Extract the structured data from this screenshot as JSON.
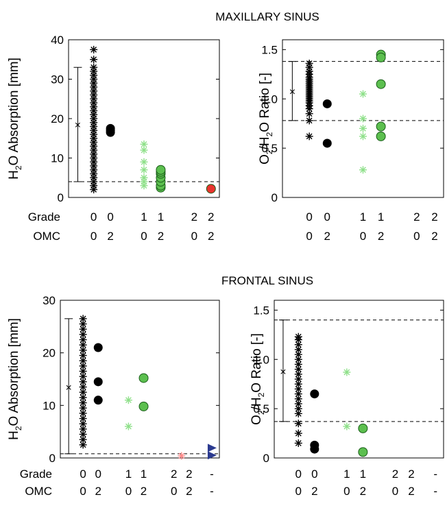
{
  "figure": {
    "top_title": "MAXILLARY SINUS",
    "bottom_title": "FRONTAL SINUS"
  },
  "row_labels": {
    "grade": "Grade",
    "omc": "OMC"
  },
  "colors": {
    "black": "#000000",
    "light_green": "#8fe08a",
    "green": "#5cbf4f",
    "red": "#e8352f",
    "pink": "#ff8a8a",
    "blue": "#2b3a8f"
  },
  "chart_data": [
    {
      "id": "max_h2o",
      "type": "scatter",
      "ylabel_main": "H",
      "ylabel_sub": "2",
      "ylabel_rest": "O Absorption [mm]",
      "ylim": [
        0,
        40
      ],
      "yticks": [
        0,
        10,
        20,
        30,
        40
      ],
      "ytick_labels": [
        "0",
        "10",
        "20",
        "30",
        "40"
      ],
      "xlim": [
        0,
        9
      ],
      "groups": [
        {
          "grade": "0",
          "omc": "0",
          "x": 1.5
        },
        {
          "grade": "0",
          "omc": "2",
          "x": 2.5
        },
        {
          "grade": "1",
          "omc": "0",
          "x": 4.5
        },
        {
          "grade": "1",
          "omc": "2",
          "x": 5.5
        },
        {
          "grade": "2",
          "omc": "0",
          "x": 7.5
        },
        {
          "grade": "2",
          "omc": "2",
          "x": 8.5
        }
      ],
      "dashed_lines": [
        4
      ],
      "errorbar": {
        "x": 0.55,
        "mean": 18.5,
        "low": 4,
        "high": 33
      },
      "series": [
        {
          "marker": "star",
          "color": "#000000",
          "x": 1.5,
          "y": [
            2,
            3,
            4,
            5,
            6,
            7,
            8,
            9,
            10,
            11,
            12,
            13,
            14,
            15,
            16,
            17,
            18,
            19,
            20,
            21,
            22,
            23,
            24,
            25,
            26,
            27,
            28,
            29,
            30,
            31,
            32,
            33,
            35,
            37.5
          ]
        },
        {
          "marker": "circle",
          "color": "#000000",
          "x": 2.5,
          "y": [
            16.5,
            17,
            17.5
          ]
        },
        {
          "marker": "star",
          "color": "#8fe08a",
          "x": 4.5,
          "y": [
            3,
            4,
            5,
            7,
            9,
            12,
            13.5
          ]
        },
        {
          "marker": "circle",
          "color": "#5cbf4f",
          "x": 5.5,
          "y": [
            2.5,
            3,
            4,
            5,
            6,
            6.5,
            7
          ]
        },
        {
          "marker": "circle",
          "color": "#e8352f",
          "x": 8.5,
          "y": [
            2.2
          ]
        }
      ]
    },
    {
      "id": "max_ratio",
      "type": "scatter",
      "ylabel_main": "O",
      "ylabel_sub": "2",
      "ylabel_rest": "/H",
      "ylabel_sub2": "2",
      "ylabel_rest2": "O Ratio [-]",
      "ylim": [
        0,
        1.6
      ],
      "yticks": [
        0,
        0.5,
        1.0,
        1.5
      ],
      "ytick_labels": [
        "0",
        "0.5",
        "1.0",
        "1.5"
      ],
      "xlim": [
        0,
        9
      ],
      "groups": [
        {
          "grade": "0",
          "omc": "0",
          "x": 1.5
        },
        {
          "grade": "0",
          "omc": "2",
          "x": 2.5
        },
        {
          "grade": "1",
          "omc": "0",
          "x": 4.5
        },
        {
          "grade": "1",
          "omc": "2",
          "x": 5.5
        },
        {
          "grade": "2",
          "omc": "0",
          "x": 7.5
        },
        {
          "grade": "2",
          "omc": "2",
          "x": 8.5
        }
      ],
      "dashed_lines": [
        1.38,
        0.78
      ],
      "errorbar": {
        "x": 0.55,
        "mean": 1.08,
        "low": 0.78,
        "high": 1.38
      },
      "series": [
        {
          "marker": "star",
          "color": "#000000",
          "x": 1.5,
          "y": [
            0.62,
            0.78,
            0.85,
            0.9,
            0.93,
            0.96,
            0.98,
            1.0,
            1.02,
            1.04,
            1.06,
            1.08,
            1.1,
            1.12,
            1.14,
            1.16,
            1.18,
            1.2,
            1.22,
            1.25,
            1.28,
            1.32,
            1.36
          ]
        },
        {
          "marker": "circle",
          "color": "#000000",
          "x": 2.5,
          "y": [
            0.95,
            0.55
          ]
        },
        {
          "marker": "star",
          "color": "#8fe08a",
          "x": 4.5,
          "y": [
            1.05,
            0.8,
            0.7,
            0.62,
            0.28
          ]
        },
        {
          "marker": "circle",
          "color": "#5cbf4f",
          "x": 5.5,
          "y": [
            1.45,
            1.42,
            1.15,
            0.72,
            0.62
          ]
        }
      ]
    },
    {
      "id": "fro_h2o",
      "type": "scatter",
      "ylabel_main": "H",
      "ylabel_sub": "2",
      "ylabel_rest": "O Absorption [mm]",
      "ylim": [
        0,
        30
      ],
      "yticks": [
        0,
        10,
        20,
        30
      ],
      "ytick_labels": [
        "0",
        "10",
        "20",
        "30"
      ],
      "xlim": [
        0,
        10.5
      ],
      "groups": [
        {
          "grade": "0",
          "omc": "0",
          "x": 1.5
        },
        {
          "grade": "0",
          "omc": "2",
          "x": 2.5
        },
        {
          "grade": "1",
          "omc": "0",
          "x": 4.5
        },
        {
          "grade": "1",
          "omc": "2",
          "x": 5.5
        },
        {
          "grade": "2",
          "omc": "0",
          "x": 7.5
        },
        {
          "grade": "2",
          "omc": "2",
          "x": 8.5
        },
        {
          "grade": "-",
          "omc": "-",
          "x": 10.0
        }
      ],
      "dashed_lines": [
        0.8
      ],
      "errorbar": {
        "x": 0.55,
        "mean": 13.5,
        "low": 0.8,
        "high": 26.5
      },
      "series": [
        {
          "marker": "star",
          "color": "#000000",
          "x": 1.5,
          "y": [
            2.5,
            3.5,
            4.5,
            5.5,
            6.5,
            7.5,
            8.5,
            9.5,
            10.5,
            11.5,
            12.5,
            13.5,
            14.5,
            15.5,
            16.5,
            17.5,
            18.5,
            19.5,
            20.5,
            21.5,
            22.5,
            23.5,
            24.5,
            25.5,
            26.5
          ]
        },
        {
          "marker": "circle",
          "color": "#000000",
          "x": 2.5,
          "y": [
            21,
            14.5,
            11
          ]
        },
        {
          "marker": "star",
          "color": "#8fe08a",
          "x": 4.5,
          "y": [
            11,
            6
          ]
        },
        {
          "marker": "circle",
          "color": "#5cbf4f",
          "x": 5.5,
          "y": [
            15.2,
            9.8
          ]
        },
        {
          "marker": "star",
          "color": "#ff8a8a",
          "x": 8.0,
          "y": [
            0.4
          ]
        },
        {
          "marker": "triangle",
          "color": "#2b3a8f",
          "x": 10.0,
          "y": [
            1.9,
            0.5
          ]
        }
      ]
    },
    {
      "id": "fro_ratio",
      "type": "scatter",
      "ylabel_main": "O",
      "ylabel_sub": "2",
      "ylabel_rest": "/H",
      "ylabel_sub2": "2",
      "ylabel_rest2": "O Ratio [-]",
      "ylim": [
        0,
        1.6
      ],
      "yticks": [
        0,
        0.5,
        1.0,
        1.5
      ],
      "ytick_labels": [
        "0",
        "0.5",
        "1.0",
        "1.5"
      ],
      "xlim": [
        0,
        10.5
      ],
      "groups": [
        {
          "grade": "0",
          "omc": "0",
          "x": 1.5
        },
        {
          "grade": "0",
          "omc": "2",
          "x": 2.5
        },
        {
          "grade": "1",
          "omc": "0",
          "x": 4.5
        },
        {
          "grade": "1",
          "omc": "2",
          "x": 5.5
        },
        {
          "grade": "2",
          "omc": "0",
          "x": 7.5
        },
        {
          "grade": "2",
          "omc": "2",
          "x": 8.5
        },
        {
          "grade": "-",
          "omc": "-",
          "x": 10.0
        }
      ],
      "dashed_lines": [
        1.4,
        0.37
      ],
      "errorbar": {
        "x": 0.55,
        "mean": 0.88,
        "low": 0.37,
        "high": 1.4
      },
      "series": [
        {
          "marker": "star",
          "color": "#000000",
          "x": 1.5,
          "y": [
            0.15,
            0.25,
            0.35,
            0.45,
            0.5,
            0.55,
            0.6,
            0.65,
            0.7,
            0.75,
            0.8,
            0.85,
            0.9,
            0.95,
            1.0,
            1.05,
            1.1,
            1.15,
            1.2,
            1.23
          ]
        },
        {
          "marker": "circle",
          "color": "#000000",
          "x": 2.5,
          "y": [
            0.65,
            0.13,
            0.09
          ]
        },
        {
          "marker": "star",
          "color": "#8fe08a",
          "x": 4.5,
          "y": [
            0.87,
            0.32
          ]
        },
        {
          "marker": "circle",
          "color": "#5cbf4f",
          "x": 5.5,
          "y": [
            0.3,
            0.06
          ]
        }
      ]
    }
  ]
}
